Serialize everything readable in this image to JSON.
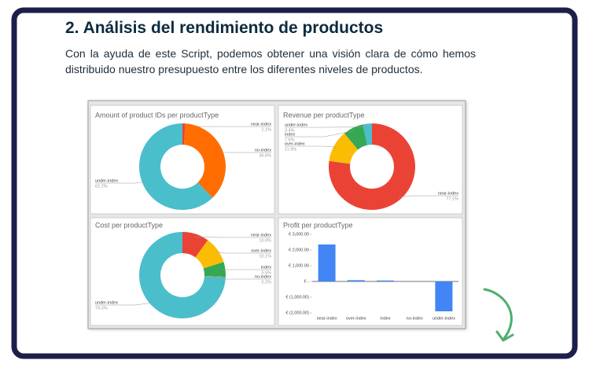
{
  "heading": "2. Análisis del rendimiento de productos",
  "paragraph": "Con la ayuda de este Script, podemos obtener una visión clara de cómo hemos distribuido nuestro presupuesto entre los diferentes niveles de productos.",
  "chart_data": [
    {
      "type": "pie",
      "title": "Amount of product IDs per productType",
      "categories": [
        "near-index",
        "no-index",
        "under-index"
      ],
      "values": [
        1.1,
        36.6,
        62.2
      ],
      "value_labels": [
        "1.1%",
        "36.6%",
        "62.2%"
      ],
      "colors": [
        "#ea4335",
        "#ff6d00",
        "#4bbecb"
      ]
    },
    {
      "type": "pie",
      "title": "Revenue per productType",
      "categories": [
        "near-index",
        "over-index",
        "index",
        "under-index"
      ],
      "values": [
        77.1,
        11.9,
        7.6,
        3.4
      ],
      "value_labels": [
        "77.1%",
        "11.9%",
        "7.6%",
        "3.4%"
      ],
      "colors": [
        "#ea4335",
        "#fbbc04",
        "#34a853",
        "#4bbecb"
      ]
    },
    {
      "type": "pie",
      "title": "Cost per productType",
      "categories": [
        "near-index",
        "over-index",
        "index",
        "no-index",
        "under-index"
      ],
      "values": [
        10.0,
        10.1,
        5.5,
        0.2,
        74.3
      ],
      "value_labels": [
        "10.0%",
        "10.1%",
        "5.5%",
        "0.2%",
        "74.3%"
      ],
      "colors": [
        "#ea4335",
        "#fbbc04",
        "#34a853",
        "#ff6d00",
        "#4bbecb"
      ]
    },
    {
      "type": "bar",
      "title": "Profit per productType",
      "categories": [
        "near-index",
        "over-index",
        "index",
        "no-index",
        "under-index"
      ],
      "values": [
        2350,
        80,
        60,
        0,
        -1900
      ],
      "color": "#4285f4",
      "ylim": [
        -2000,
        3000
      ],
      "yticks": [
        {
          "value": 3000,
          "label": "€ 3,000.00"
        },
        {
          "value": 2000,
          "label": "€ 2,000.00"
        },
        {
          "value": 1000,
          "label": "€ 1,000.00"
        },
        {
          "value": 0,
          "label": "€ -"
        },
        {
          "value": -1000,
          "label": "€ (1,000.00)"
        },
        {
          "value": -2000,
          "label": "€ (2,000.00)"
        }
      ]
    }
  ]
}
